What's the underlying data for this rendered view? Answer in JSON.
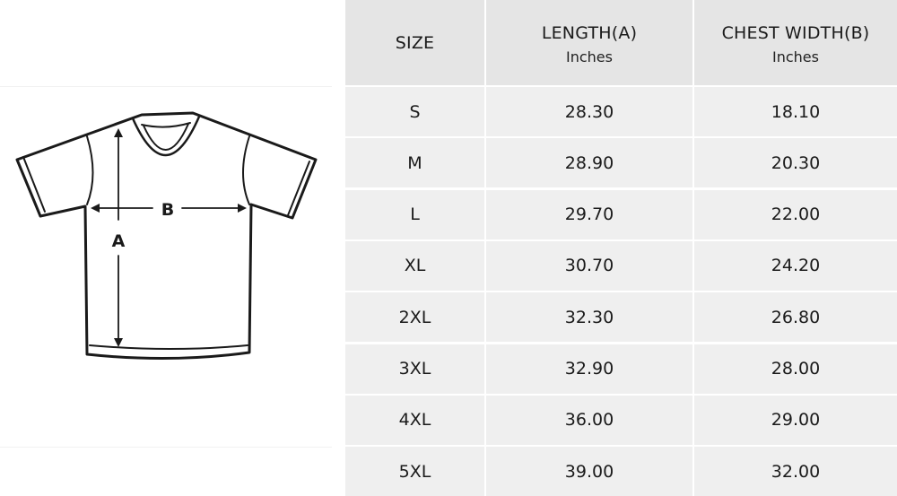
{
  "diagram": {
    "label_a": "A",
    "label_b": "B"
  },
  "table": {
    "headers": [
      {
        "title": "SIZE",
        "unit": ""
      },
      {
        "title": "LENGTH(A)",
        "unit": "Inches"
      },
      {
        "title": "CHEST WIDTH(B)",
        "unit": "Inches"
      }
    ],
    "rows": [
      {
        "size": "S",
        "length": "28.30",
        "chest": "18.10"
      },
      {
        "size": "M",
        "length": "28.90",
        "chest": "20.30"
      },
      {
        "size": "L",
        "length": "29.70",
        "chest": "22.00"
      },
      {
        "size": "XL",
        "length": "30.70",
        "chest": "24.20"
      },
      {
        "size": "2XL",
        "length": "32.30",
        "chest": "26.80"
      },
      {
        "size": "3XL",
        "length": "32.90",
        "chest": "28.00"
      },
      {
        "size": "4XL",
        "length": "36.00",
        "chest": "29.00"
      },
      {
        "size": "5XL",
        "length": "39.00",
        "chest": "32.00"
      }
    ]
  }
}
